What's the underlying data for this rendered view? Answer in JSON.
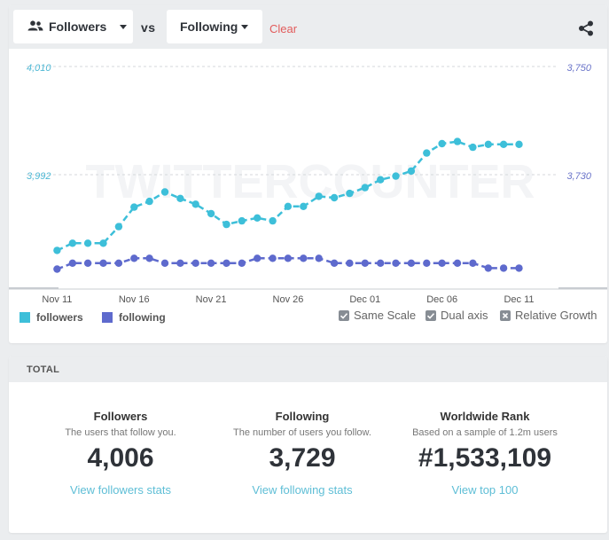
{
  "toolbar": {
    "series_a_label": "Followers",
    "vs_label": "vs",
    "series_b_label": "Following",
    "clear_label": "Clear"
  },
  "colors": {
    "followers": "#3dbfd9",
    "following": "#5e6acd",
    "clear": "#e25b5b",
    "link": "#5ebed6"
  },
  "chart_data": {
    "type": "line",
    "x": [
      "Nov 10",
      "Nov 11",
      "Nov 12",
      "Nov 13",
      "Nov 14",
      "Nov 15",
      "Nov 16",
      "Nov 17",
      "Nov 18",
      "Nov 19",
      "Nov 20",
      "Nov 21",
      "Nov 22",
      "Nov 23",
      "Nov 24",
      "Nov 25",
      "Nov 26",
      "Nov 27",
      "Nov 28",
      "Nov 29",
      "Nov 30",
      "Dec 01",
      "Dec 02",
      "Dec 03",
      "Dec 04",
      "Dec 05",
      "Dec 06",
      "Dec 07",
      "Dec 08",
      "Dec 09",
      "Dec 10",
      "Dec 11"
    ],
    "x_ticks": [
      "Nov 11",
      "Nov 16",
      "Nov 21",
      "Nov 26",
      "Dec 01",
      "Dec 06",
      "Dec 11"
    ],
    "watermark": "TWITTERCOUNTER",
    "left_axis": {
      "ticks": [
        "4,010",
        "3,992"
      ],
      "range": [
        3980,
        4010
      ]
    },
    "right_axis": {
      "ticks": [
        "3,750",
        "3,730"
      ],
      "range": [
        3728,
        3750
      ]
    },
    "grid": true,
    "series": [
      {
        "name": "followers",
        "axis": "left",
        "values": [
          null,
          3984.5,
          3985.5,
          3985.5,
          3985.5,
          3987.8,
          3990.5,
          3991.3,
          3992.6,
          3991.7,
          3990.9,
          3989.6,
          3988.1,
          3988.6,
          3989.0,
          3988.6,
          3990.6,
          3990.6,
          3992.0,
          3991.8,
          3992.4,
          3993.2,
          3994.3,
          3994.8,
          3995.5,
          3998.0,
          3999.3,
          3999.6,
          3998.8,
          3999.2,
          3999.2,
          3999.2
        ],
        "color": "#3dbfd9"
      },
      {
        "name": "following",
        "axis": "right",
        "values": [
          null,
          3729.4,
          3730.0,
          3730.0,
          3730.0,
          3730.0,
          3730.5,
          3730.5,
          3730.0,
          3730.0,
          3730.0,
          3730.0,
          3730.0,
          3730.0,
          3730.5,
          3730.5,
          3730.5,
          3730.5,
          3730.5,
          3730.0,
          3730.0,
          3730.0,
          3730.0,
          3730.0,
          3730.0,
          3730.0,
          3730.0,
          3730.0,
          3730.0,
          3729.5,
          3729.5,
          3729.5
        ],
        "color": "#5e6acd"
      }
    ]
  },
  "legend": {
    "followers": "followers",
    "following": "following"
  },
  "options": {
    "same_scale": "Same Scale",
    "dual_axis": "Dual axis",
    "relative_growth": "Relative Growth"
  },
  "total": {
    "heading": "TOTAL",
    "stats": [
      {
        "title": "Followers",
        "subtitle": "The users that follow you.",
        "value": "4,006",
        "link": "View followers stats"
      },
      {
        "title": "Following",
        "subtitle": "The number of users you follow.",
        "value": "3,729",
        "link": "View following stats"
      },
      {
        "title": "Worldwide Rank",
        "subtitle": "Based on a sample of 1.2m users",
        "value": "#1,533,109",
        "link": "View top 100"
      }
    ]
  }
}
